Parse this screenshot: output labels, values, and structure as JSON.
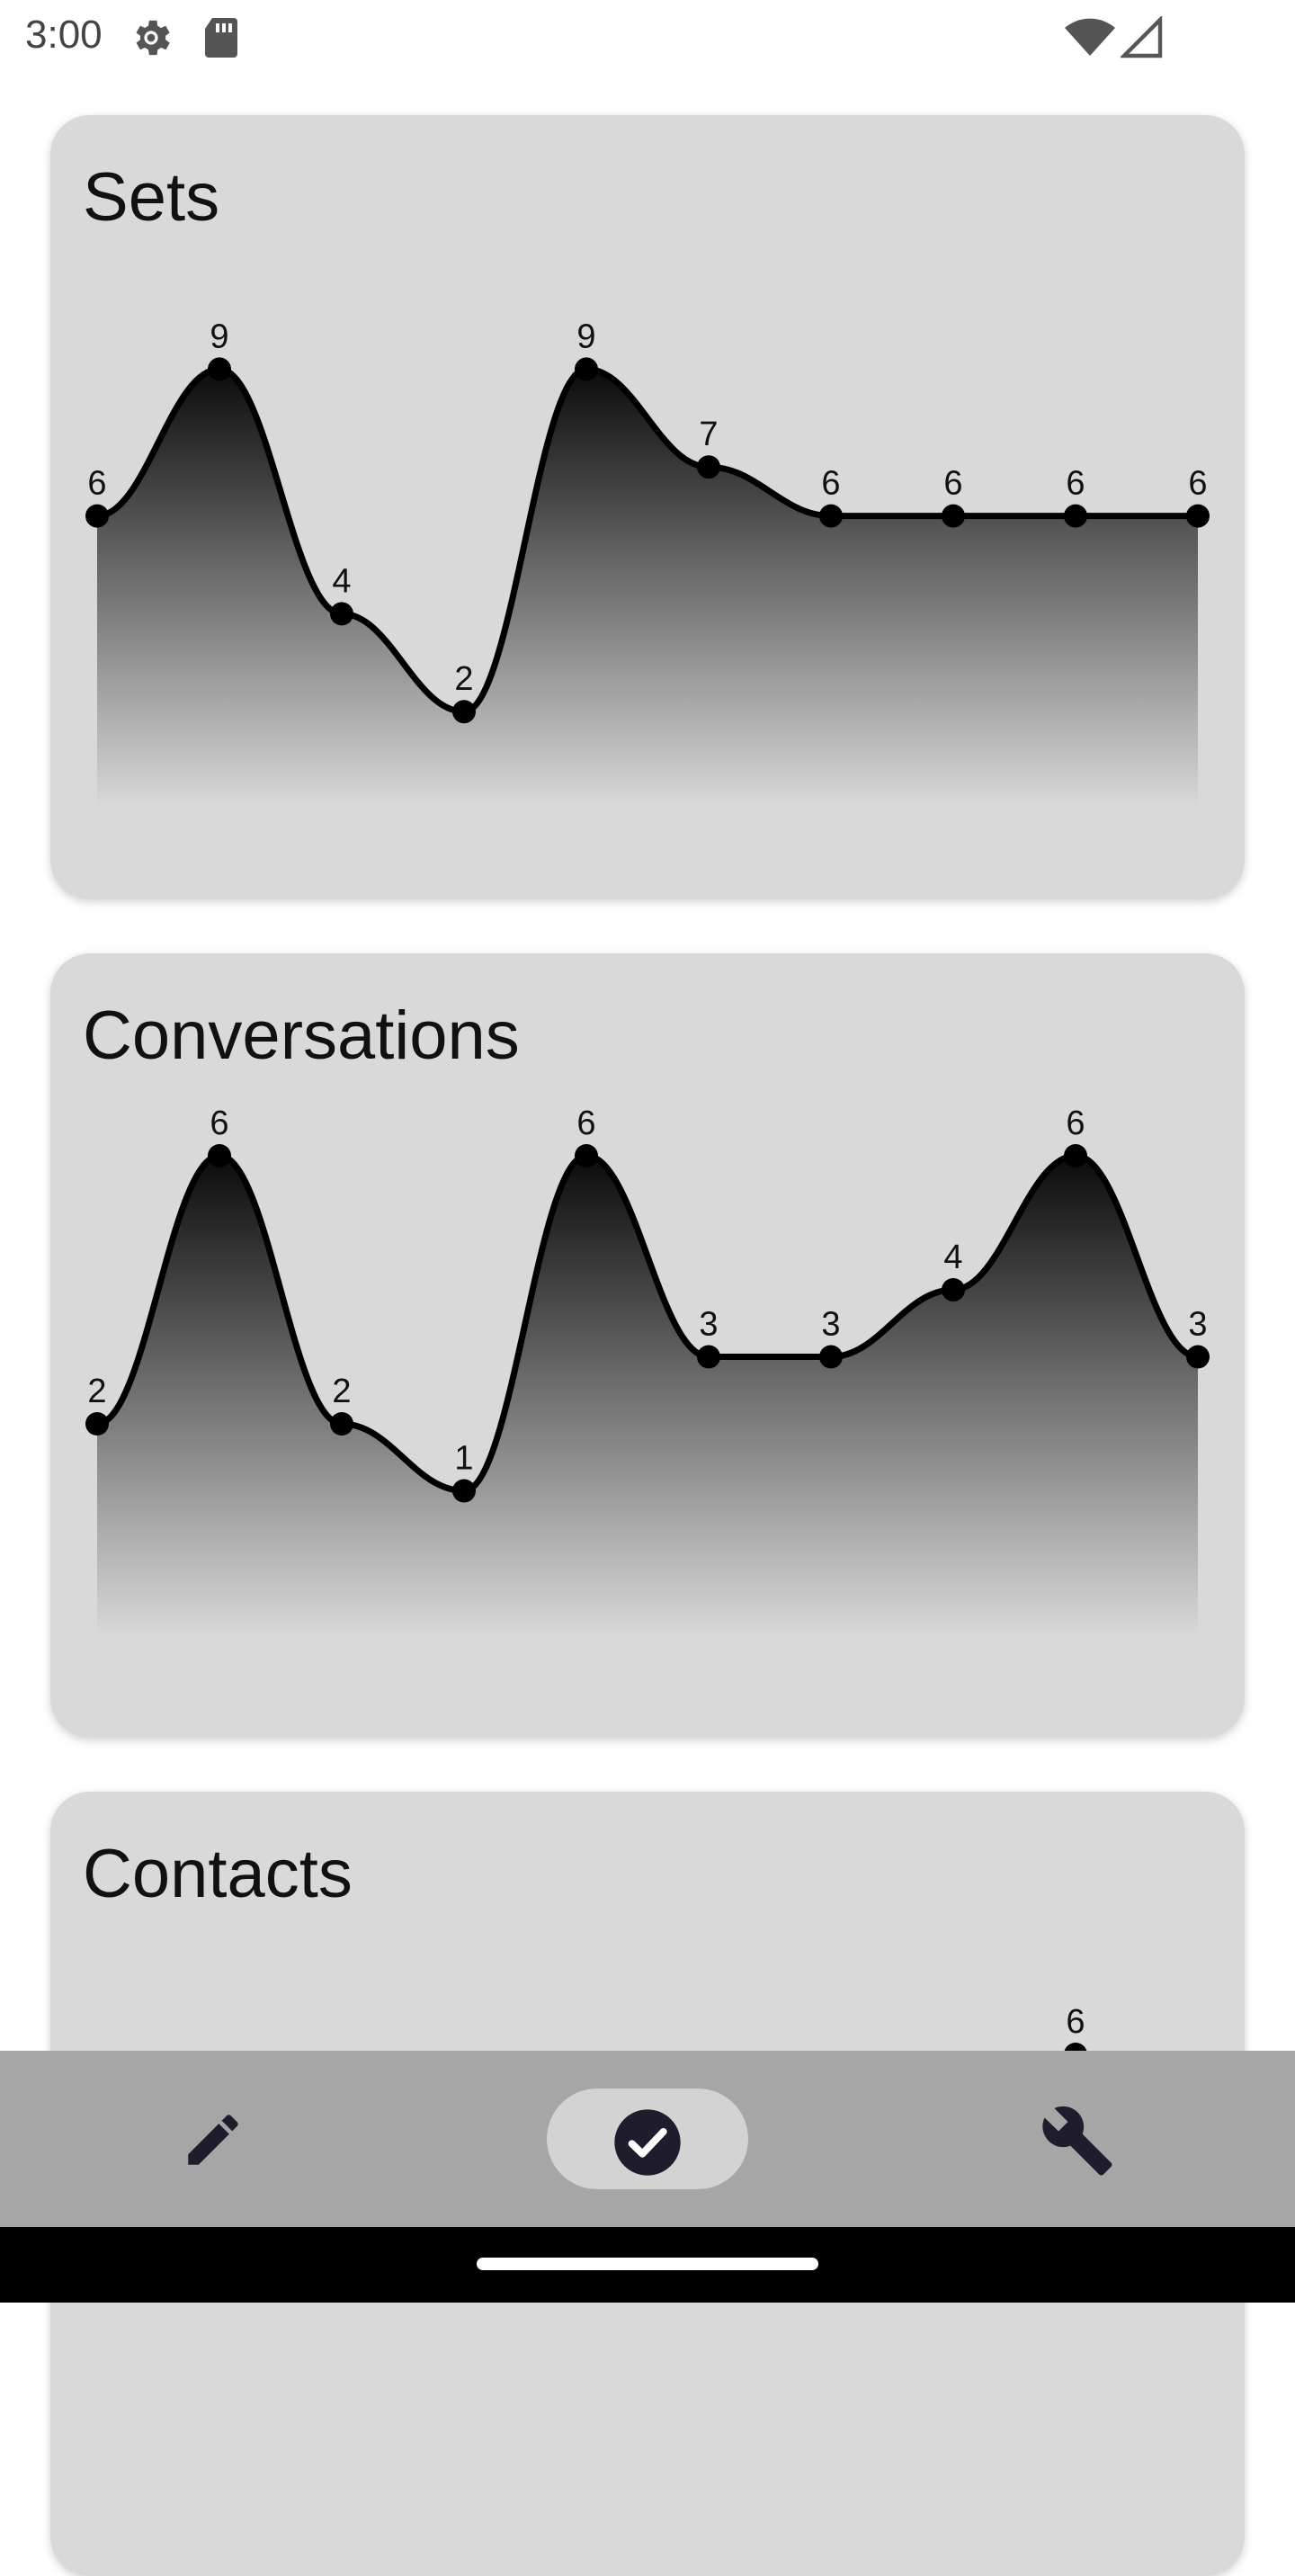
{
  "status_bar": {
    "time": "3:00",
    "icons": [
      "gear-icon",
      "sd-card-icon",
      "wifi-icon",
      "cell-signal-icon"
    ]
  },
  "cards": [
    {
      "title": "Sets"
    },
    {
      "title": "Conversations"
    },
    {
      "title": "Contacts"
    }
  ],
  "chart_data": [
    {
      "type": "area",
      "title": "Sets",
      "x": [
        1,
        2,
        3,
        4,
        5,
        6,
        7,
        8,
        9,
        10
      ],
      "values": [
        6,
        9,
        4,
        2,
        9,
        7,
        6,
        6,
        6,
        6
      ],
      "data_labels": true,
      "smooth": true,
      "fill": "gradient-black-to-transparent",
      "line_color": "#000000"
    },
    {
      "type": "area",
      "title": "Conversations",
      "x": [
        1,
        2,
        3,
        4,
        5,
        6,
        7,
        8,
        9,
        10
      ],
      "values": [
        2,
        6,
        2,
        1,
        6,
        3,
        3,
        4,
        6,
        3
      ],
      "data_labels": true,
      "smooth": true,
      "fill": "gradient-black-to-transparent",
      "line_color": "#000000"
    },
    {
      "type": "area",
      "title": "Contacts",
      "partially_visible": true,
      "visible_labels": [
        {
          "index": 8,
          "value": 6
        }
      ]
    }
  ],
  "bottom_nav": {
    "items": [
      {
        "icon": "pencil-icon",
        "label": "",
        "selected": false
      },
      {
        "icon": "check-circle-icon",
        "label": "",
        "selected": true
      },
      {
        "icon": "wrench-icon",
        "label": "",
        "selected": false
      }
    ]
  },
  "colors": {
    "card_bg": "#d9d9d9",
    "nav_bg": "#a6a6a6",
    "nav_selected_pill": "#d3d3d3",
    "check_circle": "#1f1c2c",
    "line": "#000000"
  }
}
